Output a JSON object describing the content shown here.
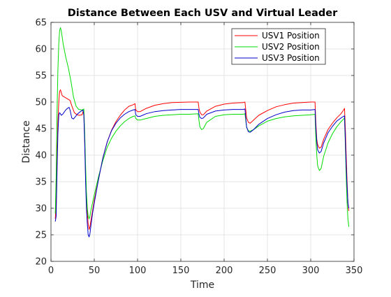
{
  "chart_data": {
    "type": "line",
    "title": "Distance Between Each USV and Virtual Leader",
    "xlabel": "Time",
    "ylabel": "Distance",
    "xlim": [
      0,
      350
    ],
    "ylim": [
      20,
      65
    ],
    "xticks": [
      0,
      50,
      100,
      150,
      200,
      250,
      300,
      350
    ],
    "yticks": [
      20,
      25,
      30,
      35,
      40,
      45,
      50,
      55,
      60,
      65
    ],
    "grid": true,
    "legend_position": "top-right",
    "series": [
      {
        "name": "USV1 Position",
        "color": "#ff0000",
        "points": [
          [
            5,
            28
          ],
          [
            6,
            31
          ],
          [
            7,
            40
          ],
          [
            8,
            46
          ],
          [
            9,
            50
          ],
          [
            10,
            52
          ],
          [
            11,
            52.3
          ],
          [
            13,
            51.2
          ],
          [
            16,
            50.9
          ],
          [
            19,
            50.6
          ],
          [
            22,
            50.3
          ],
          [
            24,
            49.3
          ],
          [
            27,
            48
          ],
          [
            30,
            47.6
          ],
          [
            33,
            47.5
          ],
          [
            36,
            47.6
          ],
          [
            37,
            48.2
          ],
          [
            38,
            47.8
          ],
          [
            39,
            42
          ],
          [
            40,
            36
          ],
          [
            41,
            32
          ],
          [
            42,
            29
          ],
          [
            43,
            27
          ],
          [
            44,
            26
          ],
          [
            45,
            26.5
          ],
          [
            46,
            27.5
          ],
          [
            48,
            29.5
          ],
          [
            50,
            31.5
          ],
          [
            55,
            35.5
          ],
          [
            60,
            39.5
          ],
          [
            65,
            42.5
          ],
          [
            70,
            44.7
          ],
          [
            75,
            46.3
          ],
          [
            80,
            47.5
          ],
          [
            85,
            48.5
          ],
          [
            90,
            49.2
          ],
          [
            95,
            49.5
          ],
          [
            97,
            49.7
          ],
          [
            98,
            48.5
          ],
          [
            100,
            48.2
          ],
          [
            103,
            48.2
          ],
          [
            110,
            48.8
          ],
          [
            120,
            49.4
          ],
          [
            130,
            49.7
          ],
          [
            140,
            49.9
          ],
          [
            150,
            49.95
          ],
          [
            160,
            50
          ],
          [
            170,
            50
          ],
          [
            171,
            48.8
          ],
          [
            172,
            48.1
          ],
          [
            174,
            47.6
          ],
          [
            176,
            47.6
          ],
          [
            180,
            48.3
          ],
          [
            190,
            49.2
          ],
          [
            200,
            49.6
          ],
          [
            210,
            49.8
          ],
          [
            222,
            49.9
          ],
          [
            224,
            50
          ],
          [
            225,
            48.5
          ],
          [
            226,
            47
          ],
          [
            228,
            46.2
          ],
          [
            230,
            46
          ],
          [
            234,
            46.6
          ],
          [
            240,
            47.5
          ],
          [
            250,
            48.4
          ],
          [
            260,
            49.1
          ],
          [
            270,
            49.5
          ],
          [
            280,
            49.8
          ],
          [
            290,
            49.9
          ],
          [
            300,
            50
          ],
          [
            305,
            50
          ],
          [
            306,
            46
          ],
          [
            307,
            43
          ],
          [
            308,
            42
          ],
          [
            310,
            41.3
          ],
          [
            312,
            41.5
          ],
          [
            315,
            43
          ],
          [
            320,
            44.8
          ],
          [
            325,
            46
          ],
          [
            330,
            47
          ],
          [
            335,
            47.8
          ],
          [
            338,
            48.5
          ],
          [
            339,
            48.8
          ],
          [
            340,
            45
          ],
          [
            341,
            40
          ],
          [
            342,
            35
          ],
          [
            343,
            31
          ],
          [
            344,
            29.5
          ]
        ]
      },
      {
        "name": "USV2 Position",
        "color": "#00dd00",
        "points": [
          [
            5,
            29
          ],
          [
            6,
            36
          ],
          [
            7,
            48
          ],
          [
            8,
            56
          ],
          [
            9,
            61
          ],
          [
            10,
            63.5
          ],
          [
            11,
            64
          ],
          [
            12,
            63.3
          ],
          [
            14,
            61
          ],
          [
            17,
            58.5
          ],
          [
            20,
            56.5
          ],
          [
            23,
            54
          ],
          [
            26,
            51
          ],
          [
            29,
            49.2
          ],
          [
            32,
            48.6
          ],
          [
            36,
            48.5
          ],
          [
            38,
            48.7
          ],
          [
            39,
            44
          ],
          [
            40,
            38
          ],
          [
            41,
            33
          ],
          [
            42,
            30
          ],
          [
            43,
            28.5
          ],
          [
            44,
            28
          ],
          [
            45,
            28.5
          ],
          [
            46,
            29.5
          ],
          [
            48,
            31
          ],
          [
            50,
            32.5
          ],
          [
            55,
            36
          ],
          [
            60,
            39
          ],
          [
            65,
            41.5
          ],
          [
            70,
            43.2
          ],
          [
            75,
            44.5
          ],
          [
            80,
            45.5
          ],
          [
            85,
            46.3
          ],
          [
            90,
            46.9
          ],
          [
            95,
            47.3
          ],
          [
            97,
            47.4
          ],
          [
            98,
            46.9
          ],
          [
            100,
            46.6
          ],
          [
            103,
            46.6
          ],
          [
            110,
            46.9
          ],
          [
            120,
            47.3
          ],
          [
            130,
            47.5
          ],
          [
            140,
            47.6
          ],
          [
            150,
            47.7
          ],
          [
            160,
            47.7
          ],
          [
            170,
            47.8
          ],
          [
            171,
            46.5
          ],
          [
            172,
            45.3
          ],
          [
            174,
            44.8
          ],
          [
            176,
            45
          ],
          [
            180,
            46.2
          ],
          [
            190,
            47.3
          ],
          [
            200,
            47.6
          ],
          [
            210,
            47.7
          ],
          [
            222,
            47.7
          ],
          [
            224,
            47.8
          ],
          [
            225,
            46.5
          ],
          [
            226,
            45.2
          ],
          [
            228,
            44.6
          ],
          [
            230,
            44.5
          ],
          [
            234,
            44.8
          ],
          [
            240,
            45.5
          ],
          [
            250,
            46.4
          ],
          [
            260,
            46.9
          ],
          [
            270,
            47.2
          ],
          [
            280,
            47.4
          ],
          [
            290,
            47.5
          ],
          [
            300,
            47.6
          ],
          [
            305,
            47.7
          ],
          [
            306,
            43
          ],
          [
            307,
            40
          ],
          [
            308,
            38
          ],
          [
            310,
            37.1
          ],
          [
            312,
            37.5
          ],
          [
            315,
            39.8
          ],
          [
            320,
            42.3
          ],
          [
            325,
            44
          ],
          [
            330,
            45.3
          ],
          [
            335,
            46.3
          ],
          [
            338,
            46.8
          ],
          [
            339,
            47
          ],
          [
            340,
            42
          ],
          [
            341,
            36
          ],
          [
            342,
            31
          ],
          [
            343,
            28
          ],
          [
            344,
            26.5
          ]
        ]
      },
      {
        "name": "USV3 Position",
        "color": "#0000cc",
        "points": [
          [
            5,
            27.5
          ],
          [
            6,
            28.5
          ],
          [
            7,
            37
          ],
          [
            8,
            44
          ],
          [
            9,
            47.5
          ],
          [
            10,
            48
          ],
          [
            12,
            47.5
          ],
          [
            14,
            47.8
          ],
          [
            17,
            48.5
          ],
          [
            19,
            48.8
          ],
          [
            21,
            49
          ],
          [
            22,
            48.5
          ],
          [
            24,
            47
          ],
          [
            26,
            46.8
          ],
          [
            28,
            47.2
          ],
          [
            31,
            47.8
          ],
          [
            34,
            48.2
          ],
          [
            36,
            48.4
          ],
          [
            37,
            48.5
          ],
          [
            38,
            47.5
          ],
          [
            39,
            42
          ],
          [
            40,
            35
          ],
          [
            41,
            30
          ],
          [
            42,
            27
          ],
          [
            43,
            25
          ],
          [
            44,
            24.6
          ],
          [
            45,
            25.2
          ],
          [
            46,
            26.5
          ],
          [
            48,
            29
          ],
          [
            50,
            31
          ],
          [
            55,
            35.5
          ],
          [
            60,
            39.5
          ],
          [
            65,
            42.5
          ],
          [
            70,
            44.6
          ],
          [
            75,
            46
          ],
          [
            80,
            47
          ],
          [
            85,
            47.7
          ],
          [
            90,
            48.2
          ],
          [
            95,
            48.5
          ],
          [
            97,
            48.6
          ],
          [
            98,
            47.6
          ],
          [
            100,
            47.3
          ],
          [
            103,
            47.3
          ],
          [
            110,
            47.8
          ],
          [
            120,
            48.2
          ],
          [
            130,
            48.4
          ],
          [
            140,
            48.5
          ],
          [
            150,
            48.6
          ],
          [
            160,
            48.6
          ],
          [
            170,
            48.6
          ],
          [
            171,
            47.7
          ],
          [
            172,
            47.1
          ],
          [
            174,
            46.9
          ],
          [
            176,
            47
          ],
          [
            180,
            47.7
          ],
          [
            190,
            48.3
          ],
          [
            200,
            48.5
          ],
          [
            210,
            48.6
          ],
          [
            222,
            48.6
          ],
          [
            224,
            48.7
          ],
          [
            225,
            47
          ],
          [
            226,
            45.3
          ],
          [
            228,
            44.4
          ],
          [
            230,
            44.3
          ],
          [
            234,
            44.8
          ],
          [
            240,
            45.8
          ],
          [
            250,
            46.9
          ],
          [
            260,
            47.6
          ],
          [
            270,
            48.1
          ],
          [
            280,
            48.4
          ],
          [
            290,
            48.5
          ],
          [
            300,
            48.5
          ],
          [
            305,
            48.6
          ],
          [
            306,
            45
          ],
          [
            307,
            42.5
          ],
          [
            308,
            41
          ],
          [
            310,
            40.4
          ],
          [
            312,
            40.7
          ],
          [
            315,
            42.3
          ],
          [
            320,
            44.2
          ],
          [
            325,
            45.4
          ],
          [
            330,
            46.4
          ],
          [
            335,
            47
          ],
          [
            338,
            47.3
          ],
          [
            339,
            47.4
          ],
          [
            340,
            43
          ],
          [
            341,
            38
          ],
          [
            342,
            34
          ],
          [
            343,
            31
          ],
          [
            344,
            30
          ]
        ]
      }
    ]
  }
}
